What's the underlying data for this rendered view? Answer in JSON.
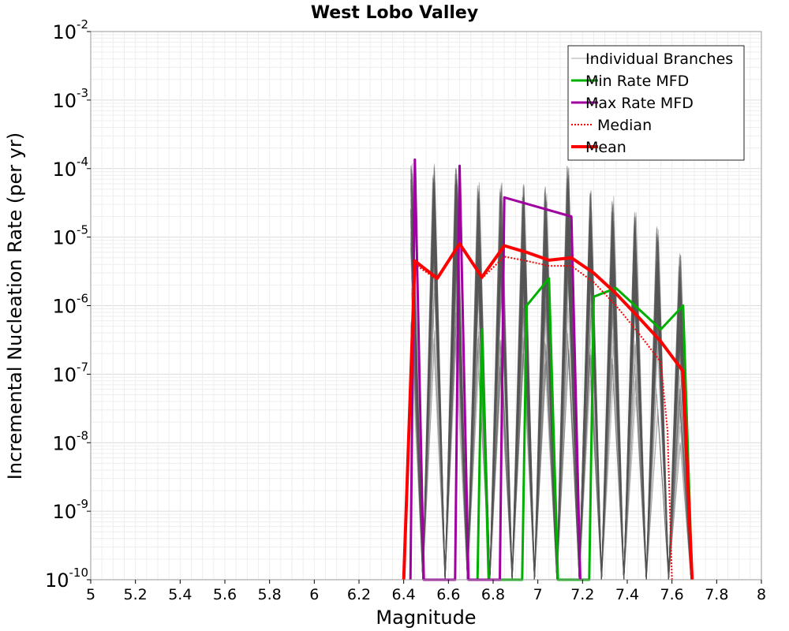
{
  "chart_data": {
    "type": "line",
    "title": "West Lobo Valley",
    "xlabel": "Magnitude",
    "ylabel": "Incremental Nucleation Rate (per yr)",
    "xlim": [
      5,
      8
    ],
    "ylim": [
      1e-10,
      0.01
    ],
    "yscale": "log",
    "grid": true,
    "legend_position": "top-right",
    "x_ticks": [
      "5",
      "5.2",
      "5.4",
      "5.6",
      "5.8",
      "6",
      "6.2",
      "6.4",
      "6.6",
      "6.8",
      "7",
      "7.2",
      "7.4",
      "7.6",
      "7.8",
      "8"
    ],
    "y_ticks": [
      {
        "value": 1e-10,
        "base": "10",
        "exp": "-10"
      },
      {
        "value": 1e-09,
        "base": "10",
        "exp": "-9"
      },
      {
        "value": 1e-08,
        "base": "10",
        "exp": "-8"
      },
      {
        "value": 1e-07,
        "base": "10",
        "exp": "-7"
      },
      {
        "value": 1e-06,
        "base": "10",
        "exp": "-6"
      },
      {
        "value": 1e-05,
        "base": "10",
        "exp": "-5"
      },
      {
        "value": 0.0001,
        "base": "10",
        "exp": "-4"
      },
      {
        "value": 0.001,
        "base": "10",
        "exp": "-3"
      },
      {
        "value": 0.01,
        "base": "10",
        "exp": "-2"
      }
    ],
    "series": [
      {
        "name": "Individual Branches",
        "style": "band",
        "color": "#555555",
        "x": [
          6.45,
          6.55,
          6.65,
          6.75,
          6.85,
          6.95,
          7.05,
          7.15,
          7.25,
          7.35,
          7.45,
          7.55,
          7.65
        ],
        "upper": [
          0.00013,
          0.00012,
          0.00011,
          6.5e-05,
          7e-05,
          6e-05,
          5.5e-05,
          0.00011,
          5e-05,
          4e-05,
          2.5e-05,
          1.5e-05,
          6e-06
        ],
        "lower": [
          1e-10,
          1e-10,
          1e-10,
          1e-10,
          1e-10,
          1e-10,
          1e-10,
          1e-10,
          1e-10,
          1e-10,
          1e-10,
          1e-10,
          1e-10
        ]
      },
      {
        "name": "Min Rate MFD",
        "style": "solid",
        "color": "#00b000",
        "x": [
          6.73,
          6.75,
          6.78,
          6.93,
          6.95,
          7.05,
          7.09,
          7.23,
          7.25,
          7.35,
          7.55,
          7.65,
          7.69
        ],
        "y": [
          1e-10,
          4.5e-07,
          1e-10,
          1e-10,
          1e-06,
          2.5e-06,
          1e-10,
          1e-10,
          1.35e-06,
          1.8e-06,
          4.5e-07,
          1e-06,
          1e-10
        ]
      },
      {
        "name": "Max Rate MFD",
        "style": "solid",
        "color": "#a000a0",
        "x": [
          6.43,
          6.45,
          6.49,
          6.63,
          6.65,
          6.69,
          6.83,
          6.85,
          7.15,
          7.19
        ],
        "y": [
          1e-10,
          0.000135,
          1e-10,
          1e-10,
          0.00011,
          1e-10,
          1e-10,
          3.8e-05,
          2e-05,
          1e-10
        ]
      },
      {
        "name": "Median",
        "style": "dotted",
        "color": "#ff0000",
        "x": [
          6.4,
          6.45,
          6.55,
          6.65,
          6.75,
          6.85,
          6.95,
          7.05,
          7.15,
          7.25,
          7.35,
          7.45,
          7.55,
          7.58,
          7.6
        ],
        "y": [
          1e-10,
          4e-06,
          2.4e-06,
          8e-06,
          2.5e-06,
          5.2e-06,
          4.5e-06,
          3.8e-06,
          3.8e-06,
          2.2e-06,
          1e-06,
          4e-07,
          1.5e-07,
          1.5e-08,
          1e-10
        ]
      },
      {
        "name": "Mean",
        "style": "solid-thick",
        "color": "#ff0000",
        "x": [
          6.4,
          6.45,
          6.55,
          6.65,
          6.75,
          6.85,
          6.95,
          7.05,
          7.15,
          7.25,
          7.35,
          7.45,
          7.55,
          7.65,
          7.69
        ],
        "y": [
          1e-10,
          4.5e-06,
          2.5e-06,
          8e-06,
          2.6e-06,
          7.5e-06,
          6e-06,
          4.6e-06,
          5e-06,
          3e-06,
          1.5e-06,
          6.8e-07,
          3e-07,
          1.1e-07,
          1e-10
        ]
      }
    ]
  }
}
